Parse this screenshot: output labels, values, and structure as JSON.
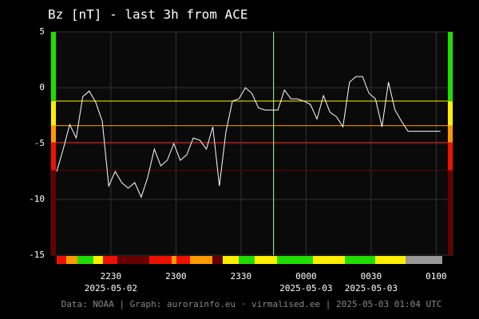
{
  "chart_data": {
    "type": "line",
    "title": "Bz [nT] - last 3h from ACE",
    "footer": "Data: NOAA | Graph: aurorainfo.eu · virmalised.ee | 2025-05-03 01:04 UTC",
    "color": "#ffffff",
    "x": [
      "2025-05-02T22:05",
      "2025-05-02T22:08",
      "2025-05-02T22:11",
      "2025-05-02T22:14",
      "2025-05-02T22:17",
      "2025-05-02T22:20",
      "2025-05-02T22:23",
      "2025-05-02T22:26",
      "2025-05-02T22:29",
      "2025-05-02T22:32",
      "2025-05-02T22:35",
      "2025-05-02T22:38",
      "2025-05-02T22:41",
      "2025-05-02T22:44",
      "2025-05-02T22:47",
      "2025-05-02T22:50",
      "2025-05-02T22:53",
      "2025-05-02T22:56",
      "2025-05-02T22:59",
      "2025-05-02T23:02",
      "2025-05-02T23:05",
      "2025-05-02T23:08",
      "2025-05-02T23:11",
      "2025-05-02T23:14",
      "2025-05-02T23:17",
      "2025-05-02T23:20",
      "2025-05-02T23:23",
      "2025-05-02T23:26",
      "2025-05-02T23:29",
      "2025-05-02T23:32",
      "2025-05-02T23:35",
      "2025-05-02T23:38",
      "2025-05-02T23:41",
      "2025-05-02T23:44",
      "2025-05-02T23:47",
      "2025-05-02T23:50",
      "2025-05-02T23:53",
      "2025-05-02T23:56",
      "2025-05-02T23:59",
      "2025-05-03T00:02",
      "2025-05-03T00:05",
      "2025-05-03T00:08",
      "2025-05-03T00:11",
      "2025-05-03T00:14",
      "2025-05-03T00:17",
      "2025-05-03T00:20",
      "2025-05-03T00:23",
      "2025-05-03T00:26",
      "2025-05-03T00:29",
      "2025-05-03T00:32",
      "2025-05-03T00:35",
      "2025-05-03T00:38",
      "2025-05-03T00:41",
      "2025-05-03T00:44",
      "2025-05-03T00:47",
      "2025-05-03T00:50",
      "2025-05-03T00:53",
      "2025-05-03T00:56",
      "2025-05-03T00:59",
      "2025-05-03T01:02"
    ],
    "values": [
      -7.5,
      -5.5,
      -3.3,
      -4.5,
      -0.8,
      -0.3,
      -1.3,
      -3,
      -8.8,
      -7.5,
      -8.5,
      -9,
      -8.5,
      -9.8,
      -8,
      -5.5,
      -7,
      -6.5,
      -5,
      -6.5,
      -6,
      -4.5,
      -4.7,
      -5.5,
      -3.5,
      -8.8,
      -4,
      -1.2,
      -1,
      0,
      -0.5,
      -1.8,
      -2,
      -2,
      -2,
      -0.2,
      -1,
      -1,
      -1.2,
      -1.5,
      -2.8,
      -0.7,
      -2.2,
      -2.6,
      -3.5,
      0.5,
      1,
      1,
      -0.5,
      -1,
      -3.5,
      0.5,
      -2,
      -3,
      -3.9,
      -3.9,
      -3.9,
      -3.9,
      -3.9,
      -3.9
    ],
    "xlim": [
      "2025-05-02T22:05",
      "2025-05-03T01:05"
    ],
    "xticks": [
      {
        "value": "2025-05-02T22:30",
        "label": "2230"
      },
      {
        "value": "2025-05-02T23:00",
        "label": "2300"
      },
      {
        "value": "2025-05-02T23:30",
        "label": "2330"
      },
      {
        "value": "2025-05-03T00:00",
        "label": "0000"
      },
      {
        "value": "2025-05-03T00:30",
        "label": "0030"
      },
      {
        "value": "2025-05-03T01:00",
        "label": "0100"
      }
    ],
    "xtick_dates": [
      {
        "value": "2025-05-02T22:30",
        "label": "2025-05-02"
      },
      {
        "value": "2025-05-03T00:00",
        "label": "2025-05-03"
      },
      {
        "value": "2025-05-03T00:30",
        "label": "2025-05-03"
      }
    ],
    "ylim": [
      -15,
      5
    ],
    "yticks": [
      -15,
      -10,
      -5,
      0,
      5
    ],
    "grid": true,
    "vline": "2025-05-02T23:45",
    "thresholds": [
      {
        "value": -1.2,
        "color": "#ffee00"
      },
      {
        "value": -3.4,
        "color": "#ff9900"
      },
      {
        "value": -4.9,
        "color": "#ee1100"
      },
      {
        "value": -7.4,
        "color": "#660000"
      }
    ],
    "top_color": "#22dd00"
  }
}
